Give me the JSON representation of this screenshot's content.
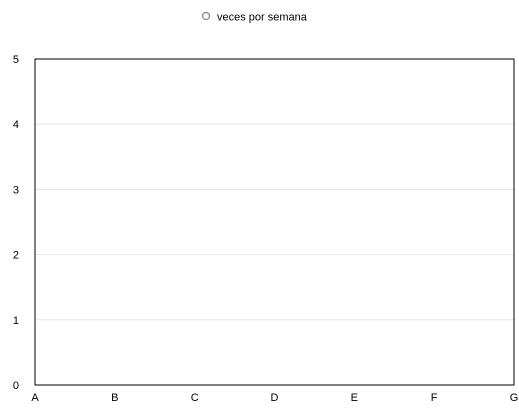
{
  "chart_data": {
    "type": "line",
    "categories": [
      "A",
      "B",
      "C",
      "D",
      "E",
      "F",
      "G"
    ],
    "series": [
      {
        "name": "veces por semana",
        "values": [
          null,
          null,
          null,
          null,
          null,
          null,
          null
        ]
      }
    ],
    "ylim": [
      0,
      5
    ],
    "yticks": [
      "0",
      "1",
      "2",
      "3",
      "4",
      "5"
    ],
    "grid": true,
    "legend_position": "top-center",
    "colors": {
      "series": "#999999",
      "grid": "#e6e6e6",
      "axis": "#000000",
      "text": "#000000"
    }
  }
}
